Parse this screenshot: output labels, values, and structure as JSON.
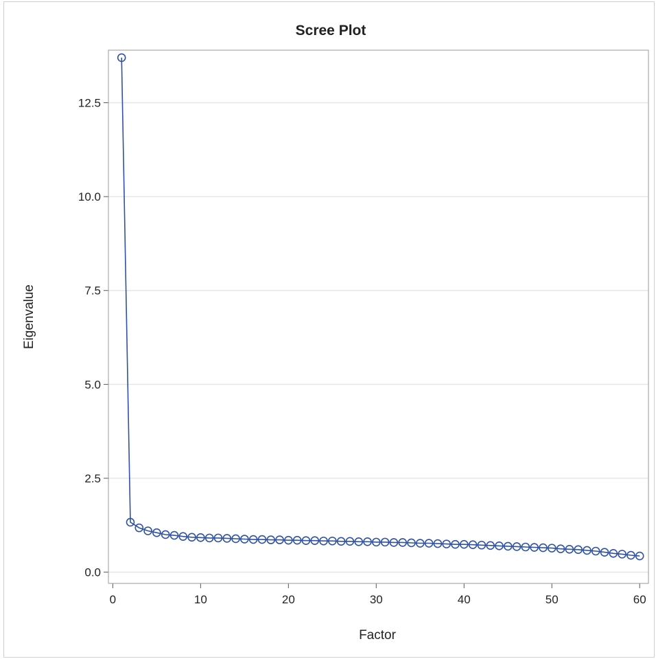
{
  "chart_data": {
    "type": "line",
    "title": "Scree Plot",
    "xlabel": "Factor",
    "ylabel": "Eigenvalue",
    "xlim": [
      -0.5,
      61
    ],
    "ylim": [
      -0.3,
      13.9
    ],
    "xticks": [
      0,
      10,
      20,
      30,
      40,
      50,
      60
    ],
    "xtick_labels": [
      "0",
      "10",
      "20",
      "30",
      "40",
      "50",
      "60"
    ],
    "yticks": [
      0,
      2.5,
      5,
      7.5,
      10,
      12.5
    ],
    "ytick_labels": [
      "0.0",
      "2.5",
      "5.0",
      "7.5",
      "10.0",
      "12.5"
    ],
    "grid": "horizontal",
    "marker": "open-circle",
    "series": [
      {
        "color": "#2e51a2",
        "x": [
          1,
          2,
          3,
          4,
          5,
          6,
          7,
          8,
          9,
          10,
          11,
          12,
          13,
          14,
          15,
          16,
          17,
          18,
          19,
          20,
          21,
          22,
          23,
          24,
          25,
          26,
          27,
          28,
          29,
          30,
          31,
          32,
          33,
          34,
          35,
          36,
          37,
          38,
          39,
          40,
          41,
          42,
          43,
          44,
          45,
          46,
          47,
          48,
          49,
          50,
          51,
          52,
          53,
          54,
          55,
          56,
          57,
          58,
          59,
          60
        ],
        "values": [
          13.7,
          1.33,
          1.18,
          1.1,
          1.05,
          1.0,
          0.98,
          0.95,
          0.93,
          0.92,
          0.91,
          0.91,
          0.9,
          0.89,
          0.88,
          0.87,
          0.87,
          0.86,
          0.86,
          0.85,
          0.85,
          0.84,
          0.84,
          0.83,
          0.83,
          0.82,
          0.82,
          0.81,
          0.81,
          0.8,
          0.8,
          0.79,
          0.79,
          0.78,
          0.77,
          0.77,
          0.76,
          0.75,
          0.74,
          0.74,
          0.73,
          0.72,
          0.71,
          0.7,
          0.69,
          0.68,
          0.67,
          0.66,
          0.65,
          0.64,
          0.62,
          0.61,
          0.6,
          0.58,
          0.56,
          0.53,
          0.5,
          0.48,
          0.45,
          0.43
        ]
      }
    ]
  }
}
